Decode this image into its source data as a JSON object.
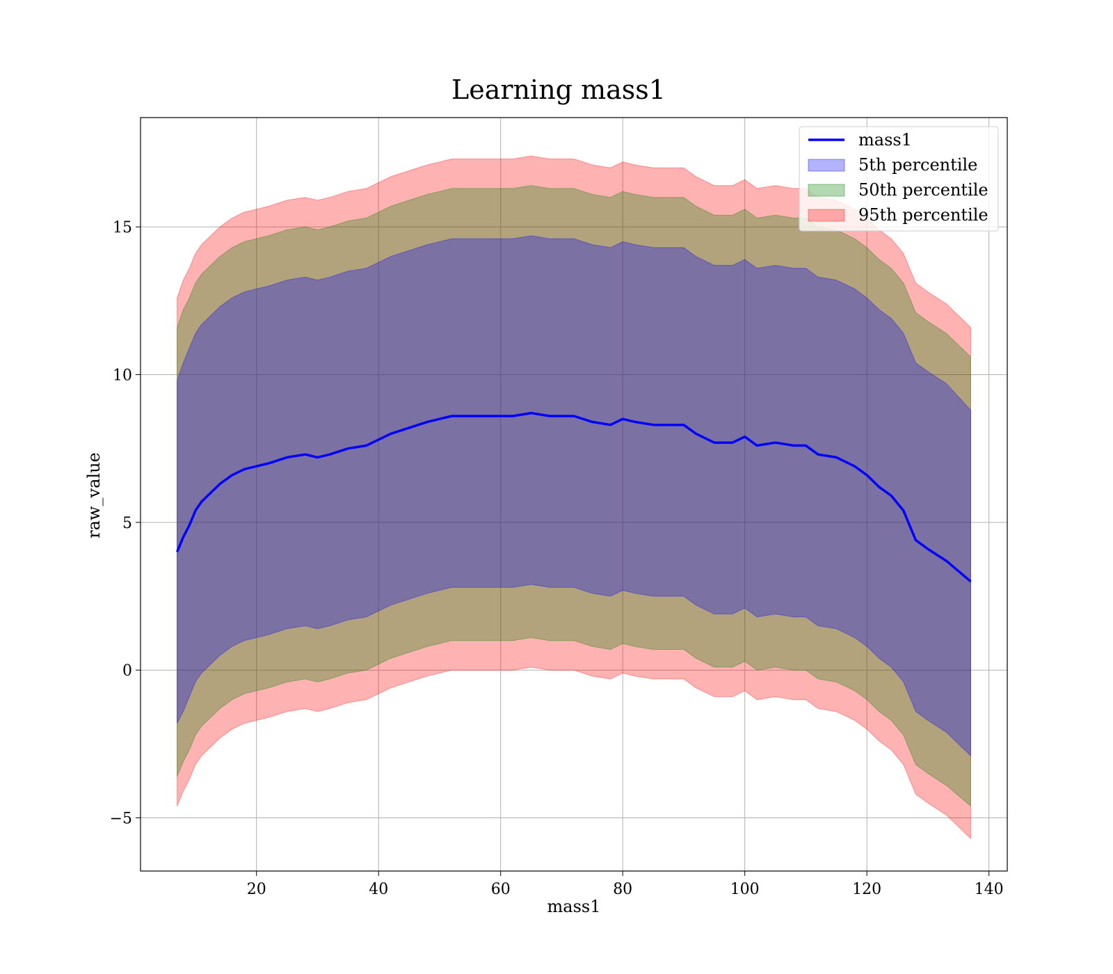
{
  "chart_data": {
    "type": "line",
    "title": "Learning mass1",
    "xlabel": "mass1",
    "ylabel": "raw_value",
    "xlim": [
      1,
      143
    ],
    "ylim": [
      -6.8,
      18.7
    ],
    "xticks": [
      20,
      40,
      60,
      80,
      100,
      120,
      140
    ],
    "xtick_labels": [
      "20",
      "40",
      "60",
      "80",
      "100",
      "120",
      "140"
    ],
    "yticks": [
      -5,
      0,
      5,
      10,
      15
    ],
    "ytick_labels": [
      "−5",
      "0",
      "5",
      "10",
      "15"
    ],
    "grid": true,
    "legend_position": "top-right",
    "series": [
      {
        "name": "mass1",
        "kind": "line",
        "color": "#0000ff",
        "x": [
          7,
          8,
          9,
          10,
          11,
          12,
          14,
          16,
          18,
          20,
          22,
          25,
          28,
          30,
          32,
          35,
          38,
          40,
          42,
          45,
          48,
          50,
          52,
          55,
          58,
          60,
          62,
          65,
          68,
          70,
          72,
          75,
          78,
          80,
          82,
          85,
          88,
          90,
          92,
          95,
          98,
          100,
          102,
          105,
          108,
          110,
          112,
          115,
          118,
          120,
          122,
          124,
          126,
          128,
          130,
          133,
          137
        ],
        "y": [
          4.0,
          4.5,
          4.9,
          5.4,
          5.7,
          5.9,
          6.3,
          6.6,
          6.8,
          6.9,
          7.0,
          7.2,
          7.3,
          7.2,
          7.3,
          7.5,
          7.6,
          7.8,
          8.0,
          8.2,
          8.4,
          8.5,
          8.6,
          8.6,
          8.6,
          8.6,
          8.6,
          8.7,
          8.6,
          8.6,
          8.6,
          8.4,
          8.3,
          8.5,
          8.4,
          8.3,
          8.3,
          8.3,
          8.0,
          7.7,
          7.7,
          7.9,
          7.6,
          7.7,
          7.6,
          7.6,
          7.3,
          7.2,
          6.9,
          6.6,
          6.2,
          5.9,
          5.4,
          4.4,
          4.1,
          3.7,
          3.0
        ]
      },
      {
        "name": "5th percentile",
        "kind": "band",
        "color": "#0000ff",
        "x": [
          7,
          8,
          9,
          10,
          11,
          12,
          14,
          16,
          18,
          20,
          22,
          25,
          28,
          30,
          32,
          35,
          38,
          40,
          42,
          45,
          48,
          50,
          52,
          55,
          58,
          60,
          62,
          65,
          68,
          70,
          72,
          75,
          78,
          80,
          82,
          85,
          88,
          90,
          92,
          95,
          98,
          100,
          102,
          105,
          108,
          110,
          112,
          115,
          118,
          120,
          122,
          124,
          126,
          128,
          130,
          133,
          137
        ],
        "upper": [
          9.8,
          10.4,
          10.9,
          11.4,
          11.7,
          11.9,
          12.3,
          12.6,
          12.8,
          12.9,
          13.0,
          13.2,
          13.3,
          13.2,
          13.3,
          13.5,
          13.6,
          13.8,
          14.0,
          14.2,
          14.4,
          14.5,
          14.6,
          14.6,
          14.6,
          14.6,
          14.6,
          14.7,
          14.6,
          14.6,
          14.6,
          14.4,
          14.3,
          14.5,
          14.4,
          14.3,
          14.3,
          14.3,
          14.0,
          13.7,
          13.7,
          13.9,
          13.6,
          13.7,
          13.6,
          13.6,
          13.3,
          13.2,
          12.9,
          12.6,
          12.2,
          11.9,
          11.4,
          10.4,
          10.1,
          9.7,
          8.8
        ],
        "lower": [
          -1.8,
          -1.4,
          -0.9,
          -0.4,
          -0.1,
          0.1,
          0.5,
          0.8,
          1.0,
          1.1,
          1.2,
          1.4,
          1.5,
          1.4,
          1.5,
          1.7,
          1.8,
          2.0,
          2.2,
          2.4,
          2.6,
          2.7,
          2.8,
          2.8,
          2.8,
          2.8,
          2.8,
          2.9,
          2.8,
          2.8,
          2.8,
          2.6,
          2.5,
          2.7,
          2.6,
          2.5,
          2.5,
          2.5,
          2.2,
          1.9,
          1.9,
          2.1,
          1.8,
          1.9,
          1.8,
          1.8,
          1.5,
          1.4,
          1.1,
          0.8,
          0.4,
          0.1,
          -0.4,
          -1.4,
          -1.7,
          -2.1,
          -2.9
        ]
      },
      {
        "name": "50th percentile",
        "kind": "band",
        "color": "#008000",
        "x": [
          7,
          8,
          9,
          10,
          11,
          12,
          14,
          16,
          18,
          20,
          22,
          25,
          28,
          30,
          32,
          35,
          38,
          40,
          42,
          45,
          48,
          50,
          52,
          55,
          58,
          60,
          62,
          65,
          68,
          70,
          72,
          75,
          78,
          80,
          82,
          85,
          88,
          90,
          92,
          95,
          98,
          100,
          102,
          105,
          108,
          110,
          112,
          115,
          118,
          120,
          122,
          124,
          126,
          128,
          130,
          133,
          137
        ],
        "upper": [
          11.6,
          12.2,
          12.6,
          13.1,
          13.4,
          13.6,
          14.0,
          14.3,
          14.5,
          14.6,
          14.7,
          14.9,
          15.0,
          14.9,
          15.0,
          15.2,
          15.3,
          15.5,
          15.7,
          15.9,
          16.1,
          16.2,
          16.3,
          16.3,
          16.3,
          16.3,
          16.3,
          16.4,
          16.3,
          16.3,
          16.3,
          16.1,
          16.0,
          16.2,
          16.1,
          16.0,
          16.0,
          16.0,
          15.7,
          15.4,
          15.4,
          15.6,
          15.3,
          15.4,
          15.3,
          15.3,
          15.0,
          14.9,
          14.6,
          14.3,
          13.9,
          13.6,
          13.1,
          12.1,
          11.8,
          11.4,
          10.6
        ],
        "lower": [
          -3.6,
          -3.1,
          -2.7,
          -2.2,
          -1.9,
          -1.7,
          -1.3,
          -1.0,
          -0.8,
          -0.7,
          -0.6,
          -0.4,
          -0.3,
          -0.4,
          -0.3,
          -0.1,
          0.0,
          0.2,
          0.4,
          0.6,
          0.8,
          0.9,
          1.0,
          1.0,
          1.0,
          1.0,
          1.0,
          1.1,
          1.0,
          1.0,
          1.0,
          0.8,
          0.7,
          0.9,
          0.8,
          0.7,
          0.7,
          0.7,
          0.4,
          0.1,
          0.1,
          0.3,
          0.0,
          0.1,
          0.0,
          0.0,
          -0.3,
          -0.4,
          -0.7,
          -1.0,
          -1.4,
          -1.7,
          -2.2,
          -3.2,
          -3.5,
          -3.9,
          -4.6
        ]
      },
      {
        "name": "95th percentile",
        "kind": "band",
        "color": "#ff0000",
        "x": [
          7,
          8,
          9,
          10,
          11,
          12,
          14,
          16,
          18,
          20,
          22,
          25,
          28,
          30,
          32,
          35,
          38,
          40,
          42,
          45,
          48,
          50,
          52,
          55,
          58,
          60,
          62,
          65,
          68,
          70,
          72,
          75,
          78,
          80,
          82,
          85,
          88,
          90,
          92,
          95,
          98,
          100,
          102,
          105,
          108,
          110,
          112,
          115,
          118,
          120,
          122,
          124,
          126,
          128,
          130,
          133,
          137
        ],
        "upper": [
          12.6,
          13.2,
          13.6,
          14.1,
          14.4,
          14.6,
          15.0,
          15.3,
          15.5,
          15.6,
          15.7,
          15.9,
          16.0,
          15.9,
          16.0,
          16.2,
          16.3,
          16.5,
          16.7,
          16.9,
          17.1,
          17.2,
          17.3,
          17.3,
          17.3,
          17.3,
          17.3,
          17.4,
          17.3,
          17.3,
          17.3,
          17.1,
          17.0,
          17.2,
          17.1,
          17.0,
          17.0,
          17.0,
          16.7,
          16.4,
          16.4,
          16.6,
          16.3,
          16.4,
          16.3,
          16.3,
          16.0,
          15.9,
          15.6,
          15.3,
          14.9,
          14.6,
          14.1,
          13.1,
          12.8,
          12.4,
          11.6
        ],
        "lower": [
          -4.6,
          -4.1,
          -3.7,
          -3.2,
          -2.9,
          -2.7,
          -2.3,
          -2.0,
          -1.8,
          -1.7,
          -1.6,
          -1.4,
          -1.3,
          -1.4,
          -1.3,
          -1.1,
          -1.0,
          -0.8,
          -0.6,
          -0.4,
          -0.2,
          -0.1,
          0.0,
          0.0,
          0.0,
          0.0,
          0.0,
          0.1,
          0.0,
          0.0,
          0.0,
          -0.2,
          -0.3,
          -0.1,
          -0.2,
          -0.3,
          -0.3,
          -0.3,
          -0.6,
          -0.9,
          -0.9,
          -0.7,
          -1.0,
          -0.9,
          -1.0,
          -1.0,
          -1.3,
          -1.4,
          -1.7,
          -2.0,
          -2.4,
          -2.7,
          -3.2,
          -4.2,
          -4.5,
          -4.9,
          -5.7
        ]
      }
    ]
  }
}
